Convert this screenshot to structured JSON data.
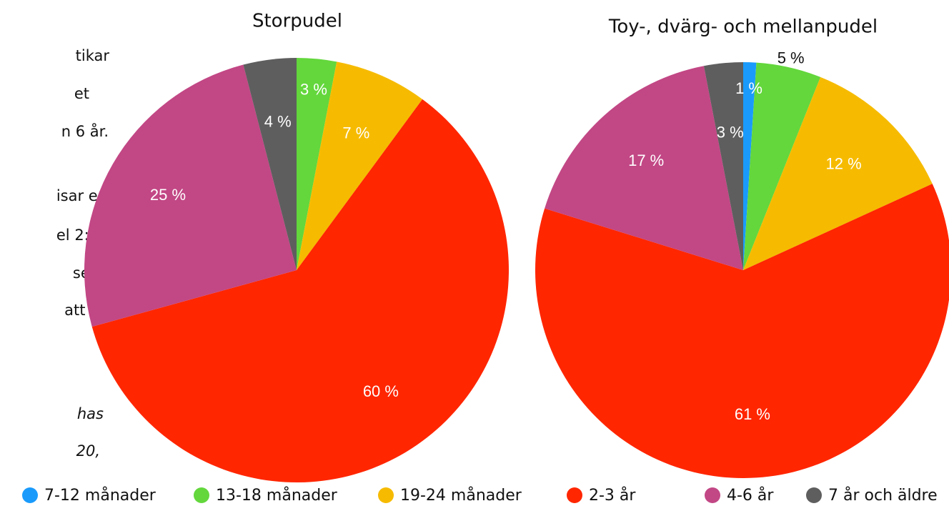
{
  "chart_data": [
    {
      "type": "pie",
      "title": "Storpudel",
      "values": [
        0,
        3,
        7,
        60,
        25,
        4
      ],
      "value_labels": [
        null,
        "3 %",
        "7 %",
        "60 %",
        "25 %",
        "4 %"
      ]
    },
    {
      "type": "pie",
      "title": "Toy-, dvärg- och mellanpudel",
      "values": [
        1,
        5,
        12,
        61,
        17,
        3
      ],
      "value_labels": [
        "1 %",
        "5 %",
        "12 %",
        "61 %",
        "17 %",
        "3 %"
      ]
    }
  ],
  "legend": {
    "categories": [
      "7-12 månader",
      "13-18 månader",
      "19-24 månader",
      "2-3 år",
      "4-6 år",
      "7 år och äldre"
    ],
    "colors": [
      "#1a9bfc",
      "#63d73c",
      "#f6bb00",
      "#ff2600",
      "#c24785",
      "#5e5e5e"
    ]
  },
  "side_text": [
    "tikar",
    "et",
    "n 6 år.",
    "isar en",
    "el 2:5).",
    "sens",
    "att se"
  ],
  "side_note": [
    "has",
    "20,"
  ]
}
